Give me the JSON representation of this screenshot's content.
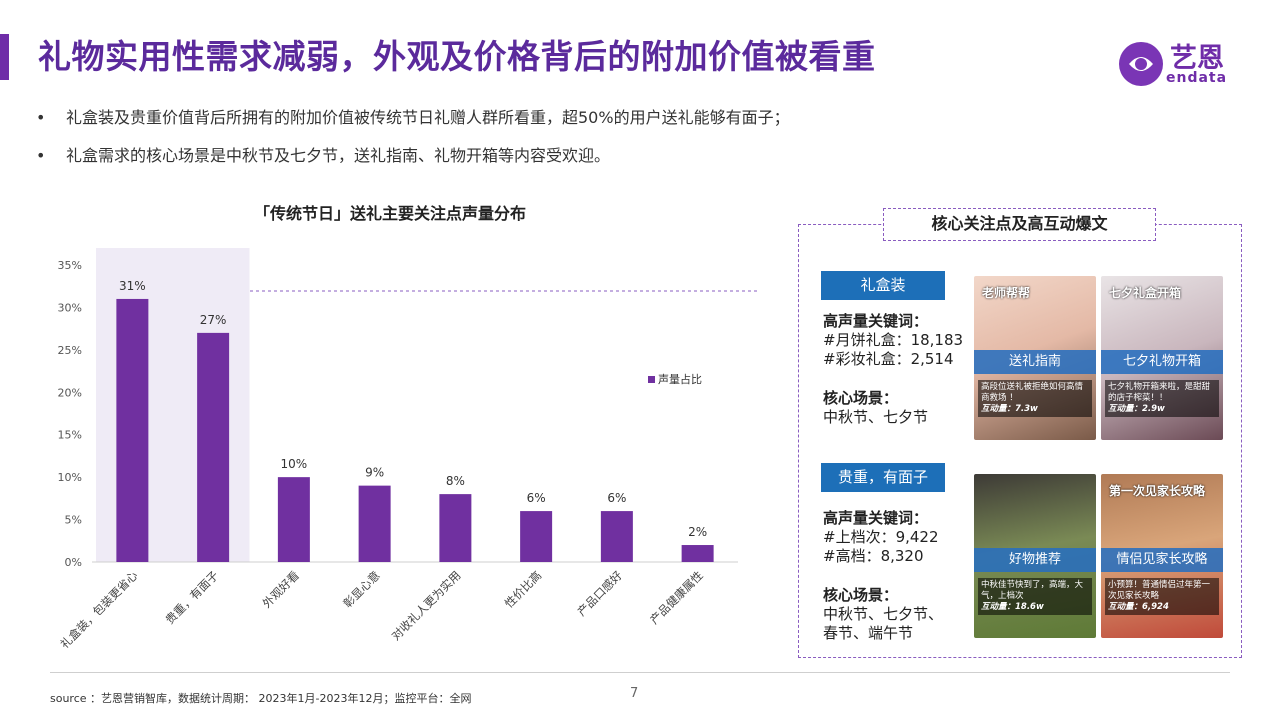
{
  "header": {
    "title": "礼物实用性需求减弱，外观及价格背后的附加价值被看重",
    "logo_cn": "艺恩",
    "logo_en": "endata"
  },
  "bullets": [
    "礼盒装及贵重价值背后所拥有的附加价值被传统节日礼赠人群所看重，超50%的用户送礼能够有面子；",
    "礼盒需求的核心场景是中秋节及七夕节，送礼指南、礼物开箱等内容受欢迎。"
  ],
  "chart_data": {
    "type": "bar",
    "title": "「传统节日」送礼主要关注点声量分布",
    "categories": [
      "礼盒装，包装更省心",
      "贵重，有面子",
      "外观好看",
      "彰显心意",
      "对收礼人更为实用",
      "性价比高",
      "产品口感好",
      "产品健康属性"
    ],
    "series": [
      {
        "name": "声量占比",
        "values": [
          31,
          27,
          10,
          9,
          8,
          6,
          6,
          2
        ]
      }
    ],
    "value_labels": [
      "31%",
      "27%",
      "10%",
      "9%",
      "8%",
      "6%",
      "6%",
      "2%"
    ],
    "y_ticks": [
      "0%",
      "5%",
      "10%",
      "15%",
      "20%",
      "25%",
      "30%",
      "35%"
    ],
    "ylim": [
      0,
      35
    ],
    "highlight_categories": [
      "礼盒装，包装更省心"
    ],
    "legend_position": "right",
    "bar_color": "#7030a0"
  },
  "panel": {
    "title": "核心关注点及高互动爆文",
    "groups": [
      {
        "tag": "礼盒装",
        "kw_heading": "高声量关键词：",
        "keywords": [
          "#月饼礼盒：18,183",
          "#彩妆礼盒：2,514"
        ],
        "scene_heading": "核心场景：",
        "scenes": [
          "中秋节、七夕节"
        ],
        "posts": [
          {
            "caption": "送礼指南",
            "top": "老师帮帮",
            "desc": "高段位送礼被拒绝如何高情商救场 ！",
            "metric": "互动量：7.3w"
          },
          {
            "caption": "七夕礼物开箱",
            "top": "七夕礼盒开箱",
            "desc": "七夕礼物开箱来啦，是甜甜的店子榨菜！！",
            "metric": "互动量：2.9w"
          }
        ]
      },
      {
        "tag": "贵重，有面子",
        "kw_heading": "高声量关键词：",
        "keywords": [
          "#上档次：9,422",
          "#高档：8,320"
        ],
        "scene_heading": "核心场景：",
        "scenes": [
          "中秋节、七夕节、",
          "春节、端午节"
        ],
        "posts": [
          {
            "caption": "好物推荐",
            "top": "",
            "desc": "中秋佳节快到了，高端，大气，上档次",
            "metric": "互动量：18.6w"
          },
          {
            "caption": "情侣见家长攻略",
            "top": "第一次见家长攻略",
            "desc": "小预算！普通情侣过年第一次见家长攻略",
            "metric": "互动量：6,924"
          }
        ]
      }
    ]
  },
  "footer": {
    "source": "source ：艺恩营销智库，数据统计周期： 2023年1月-2023年12月；监控平台：全网",
    "page": "7"
  }
}
